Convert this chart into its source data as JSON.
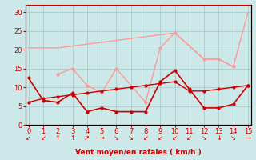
{
  "x": [
    0,
    1,
    2,
    3,
    4,
    5,
    6,
    7,
    8,
    9,
    10,
    11,
    12,
    13,
    14,
    15
  ],
  "line_pink1": [
    20.5,
    20.5,
    20.5,
    21.0,
    21.5,
    22.0,
    22.5,
    23.0,
    23.5,
    24.0,
    24.5,
    21.0,
    17.5,
    17.5,
    15.5,
    30.0
  ],
  "line_pink2_x": [
    2,
    3,
    4,
    5,
    6,
    8,
    9,
    10,
    12,
    13,
    14
  ],
  "line_pink2_y": [
    13.5,
    15.0,
    10.5,
    8.5,
    15.0,
    6.0,
    20.5,
    24.5,
    17.5,
    17.5,
    15.5
  ],
  "line_red1": [
    12.5,
    6.5,
    6.0,
    8.5,
    3.5,
    4.5,
    3.5,
    3.5,
    3.5,
    11.5,
    14.5,
    9.5,
    4.5,
    4.5,
    5.5,
    10.5
  ],
  "line_red2": [
    6.0,
    7.0,
    7.5,
    8.0,
    8.5,
    9.0,
    9.5,
    10.0,
    10.5,
    11.0,
    11.5,
    9.0,
    9.0,
    9.5,
    10.0,
    10.5
  ],
  "background_color": "#cce8e8",
  "grid_color": "#aacccc",
  "pink_color": "#ff9999",
  "red_color": "#cc0000",
  "xlabel": "Vent moyen/en rafales ( km/h )",
  "ylim": [
    0,
    32
  ],
  "xlim": [
    -0.2,
    15.2
  ],
  "yticks": [
    0,
    5,
    10,
    15,
    20,
    25,
    30
  ],
  "xticks": [
    0,
    1,
    2,
    3,
    4,
    5,
    6,
    7,
    8,
    9,
    10,
    11,
    12,
    13,
    14,
    15
  ],
  "wind_arrows": [
    "↙",
    "↙",
    "↑",
    "↑",
    "↗",
    "→",
    "↘",
    "↘",
    "↙",
    "↙",
    "↙",
    "↙",
    "↘",
    "↓",
    "↘",
    "→"
  ]
}
